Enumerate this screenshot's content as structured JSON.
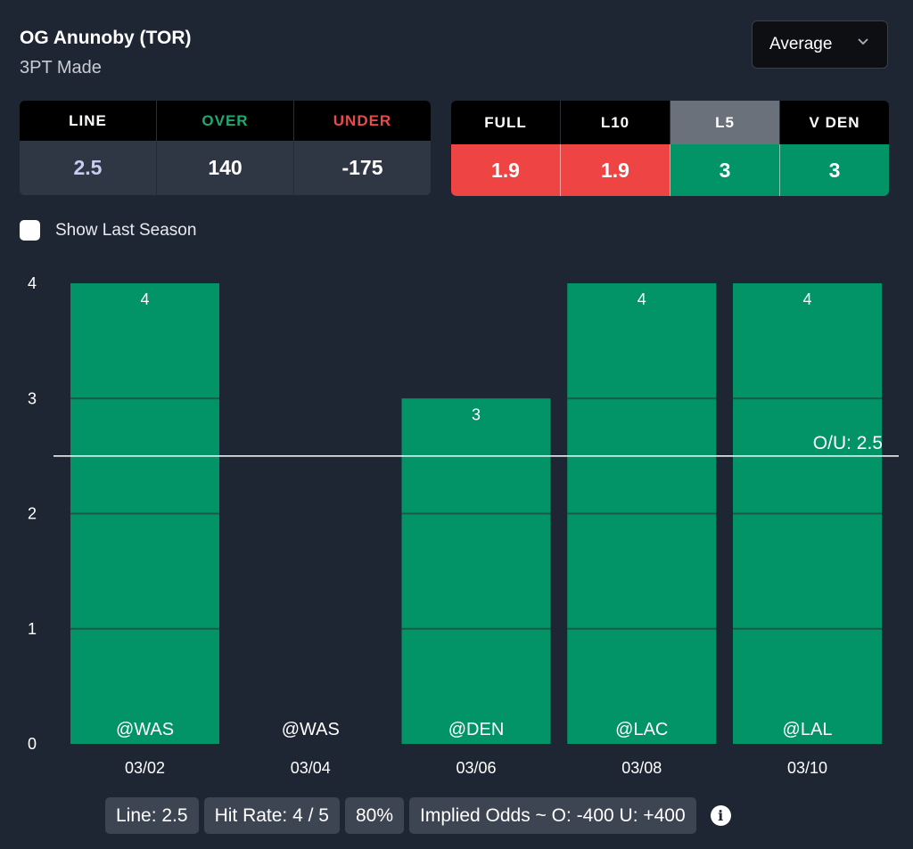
{
  "header": {
    "player": "OG Anunoby (TOR)",
    "stat": "3PT Made"
  },
  "dropdown": {
    "selected": "Average",
    "icon": "chevron-down-icon"
  },
  "odds": {
    "headers": [
      {
        "label": "LINE",
        "color": "#ffffff"
      },
      {
        "label": "OVER",
        "color": "#1fa874"
      },
      {
        "label": "UNDER",
        "color": "#e84a4a"
      }
    ],
    "values": [
      {
        "value": "2.5",
        "color": "#c7cdf0"
      },
      {
        "value": "140",
        "color": "#ffffff"
      },
      {
        "value": "-175",
        "color": "#ffffff"
      }
    ]
  },
  "averages": {
    "tabs": [
      {
        "label": "FULL",
        "value": "1.9",
        "status": "under",
        "active": false
      },
      {
        "label": "L10",
        "value": "1.9",
        "status": "under",
        "active": false
      },
      {
        "label": "L5",
        "value": "3",
        "status": "over",
        "active": true
      },
      {
        "label": "V DEN",
        "value": "3",
        "status": "over",
        "active": false
      }
    ],
    "colors": {
      "over": "#029466",
      "under": "#ee4444"
    }
  },
  "show_last_season": {
    "label": "Show Last Season",
    "checked": false
  },
  "chart_data": {
    "type": "bar",
    "title": "",
    "xlabel": "",
    "ylabel": "",
    "categories": [
      "03/02",
      "03/04",
      "03/06",
      "03/08",
      "03/10"
    ],
    "opponents": [
      "@WAS",
      "@WAS",
      "@DEN",
      "@LAC",
      "@LAL"
    ],
    "values": [
      4,
      0,
      3,
      4,
      4
    ],
    "ylim": [
      0,
      4
    ],
    "yticks": [
      0,
      1,
      2,
      3,
      4
    ],
    "line": {
      "value": 2.5,
      "label": "O/U: 2.5"
    },
    "bar_color": "#029466",
    "grid": false
  },
  "footer": {
    "pills": [
      "Line: 2.5",
      "Hit Rate: 4 / 5",
      "80%",
      "Implied Odds ~ O: -400 U: +400"
    ],
    "info_icon": "info-icon"
  }
}
